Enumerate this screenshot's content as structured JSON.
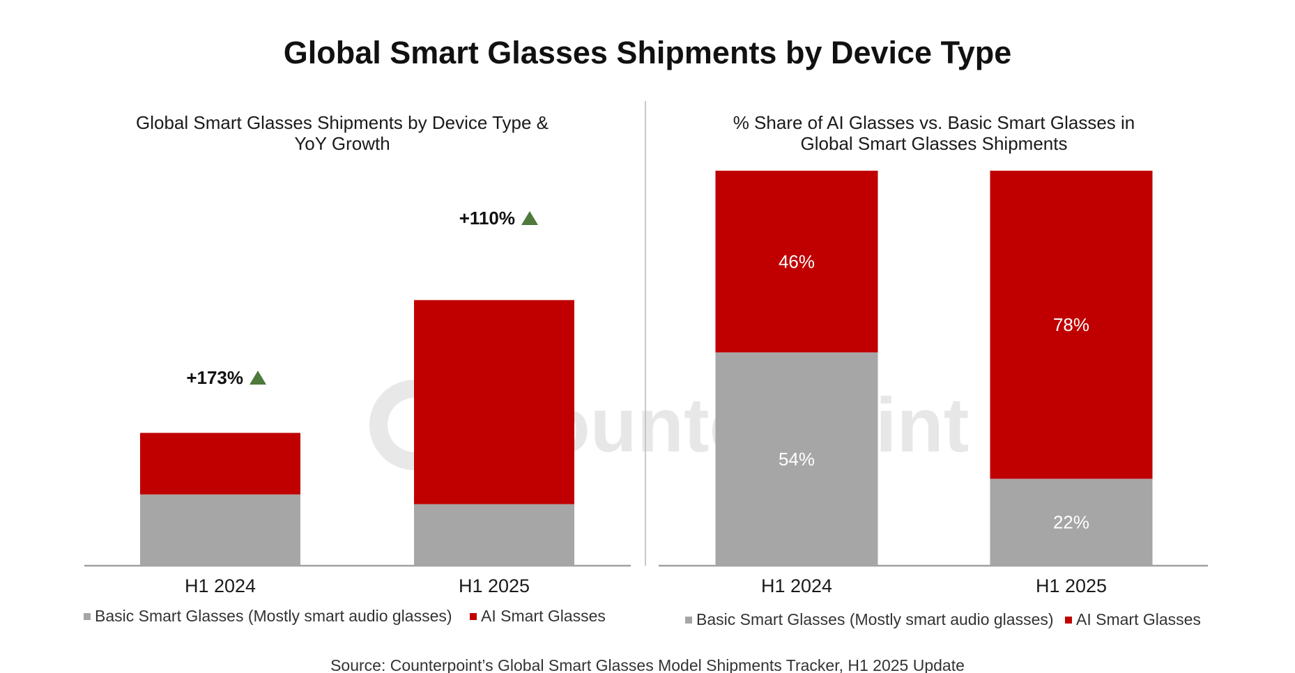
{
  "title": "Global Smart Glasses Shipments by Device Type",
  "watermark": "Counterpoint",
  "source": "Source: Counterpoint’s Global Smart Glasses Model Shipments Tracker, H1 2025 Update",
  "colors": {
    "basic": "#a6a6a6",
    "ai": "#c00000",
    "growth_icon": "#4e7a3c"
  },
  "chart_data": [
    {
      "type": "bar",
      "stacked": true,
      "title": "Global Smart Glasses Shipments by Device Type & YoY Growth",
      "title_lines": [
        "Global Smart Glasses Shipments by Device Type &",
        "YoY Growth"
      ],
      "categories": [
        "H1 2024",
        "H1 2025"
      ],
      "series": [
        {
          "name": "Basic Smart Glasses (Mostly smart audio glasses)",
          "values": [
            22,
            19
          ]
        },
        {
          "name": "AI Smart Glasses",
          "values": [
            19,
            63
          ]
        }
      ],
      "ylim": [
        0,
        100
      ],
      "annotations": [
        "+173%",
        "+110%"
      ],
      "legend": [
        "Basic Smart Glasses (Mostly smart audio glasses)",
        "AI Smart Glasses"
      ],
      "legend_position": "bottom"
    },
    {
      "type": "bar",
      "stacked": true,
      "percent": true,
      "title": "% Share of AI Glasses vs. Basic Smart Glasses in Global Smart Glasses Shipments",
      "title_lines": [
        "% Share of AI Glasses vs. Basic Smart Glasses in",
        "Global Smart Glasses Shipments"
      ],
      "categories": [
        "H1 2024",
        "H1 2025"
      ],
      "series": [
        {
          "name": "Basic Smart Glasses (Mostly smart audio glasses)",
          "values": [
            54,
            22
          ],
          "labels": [
            "54%",
            "22%"
          ]
        },
        {
          "name": "AI Smart Glasses",
          "values": [
            46,
            78
          ],
          "labels": [
            "46%",
            "78%"
          ]
        }
      ],
      "ylim": [
        0,
        100
      ],
      "legend": [
        "Basic Smart Glasses (Mostly smart audio glasses)",
        "AI Smart Glasses"
      ],
      "legend_position": "bottom"
    }
  ]
}
